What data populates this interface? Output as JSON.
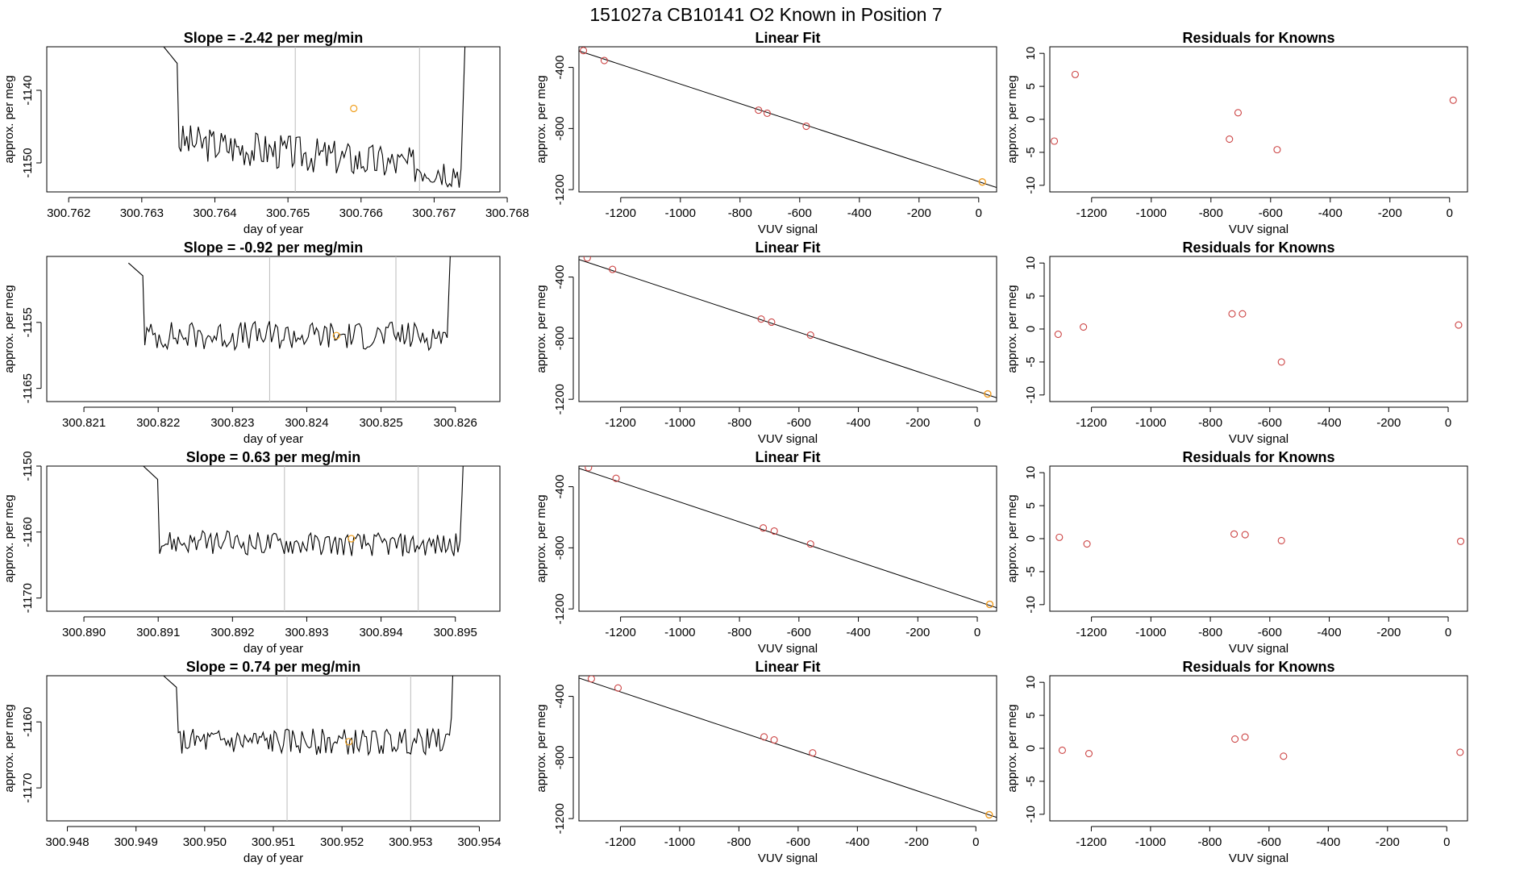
{
  "page": {
    "title": "151027a     CB10141    O2 Known in Position  7",
    "plot_colors": {
      "line": "#000000",
      "marker_known": "#cc4444",
      "marker_highlight": "#f0a020",
      "vline": "#bbbbbb"
    }
  },
  "chart_data": [
    {
      "row": 0,
      "type": "line",
      "title": "Slope =  -2.42  per meg/min",
      "xlabel": "day of year",
      "ylabel": "approx. per meg",
      "xlim": [
        300.7617,
        300.7679
      ],
      "ylim": [
        -1154,
        -1134
      ],
      "xticks": [
        "300.762",
        "300.763",
        "300.764",
        "300.765",
        "300.766",
        "300.767",
        "300.768"
      ],
      "xtick_values": [
        300.762,
        300.763,
        300.764,
        300.765,
        300.766,
        300.767,
        300.768
      ],
      "yticks": [
        "-1140",
        "-1150"
      ],
      "ytick_values": [
        -1140,
        -1150
      ],
      "vlines": [
        300.7651,
        300.7668
      ],
      "highlight": {
        "x": 300.7659,
        "y": -1142.5
      },
      "trace": {
        "x_start": 300.7633,
        "x_end": 300.7675,
        "y_from": -1134,
        "y_to": -1151,
        "noise": 2.5,
        "y_at_end": -1149,
        "drift_mid": -1147
      }
    },
    {
      "row": 0,
      "type": "scatter",
      "title": "Linear Fit",
      "xlabel": "VUV signal",
      "ylabel": "approx. per meg",
      "xlim": [
        -1340,
        60
      ],
      "ylim": [
        -1215,
        -265
      ],
      "xticks": [
        "-1200",
        "-1000",
        "-800",
        "-600",
        "-400",
        "-200",
        "0"
      ],
      "xtick_values": [
        -1200,
        -1000,
        -800,
        -600,
        -400,
        -200,
        0
      ],
      "yticks": [
        "-400",
        "-800",
        "-1200"
      ],
      "ytick_values": [
        -400,
        -800,
        -1200
      ],
      "fit_line": {
        "x": [
          -1340,
          60
        ],
        "y": [
          -292,
          -1186
        ]
      },
      "points": {
        "x": [
          -1325,
          -1255,
          -738,
          -709,
          -578,
          12
        ],
        "y": [
          -290,
          -355,
          -680,
          -700,
          -785,
          -1150
        ]
      },
      "highlight": {
        "x": 12,
        "y": -1150
      }
    },
    {
      "row": 0,
      "type": "scatter",
      "title": "Residuals for Knowns",
      "xlabel": "VUV signal",
      "ylabel": "approx. per meg",
      "xlim": [
        -1340,
        60
      ],
      "ylim": [
        -11,
        11
      ],
      "xticks": [
        "-1200",
        "-1000",
        "-800",
        "-600",
        "-400",
        "-200",
        "0"
      ],
      "xtick_values": [
        -1200,
        -1000,
        -800,
        -600,
        -400,
        -200,
        0
      ],
      "yticks": [
        "-10",
        "-5",
        "0",
        "5",
        "10"
      ],
      "ytick_values": [
        -10,
        -5,
        0,
        5,
        10
      ],
      "points": {
        "x": [
          -1325,
          -1255,
          -738,
          -709,
          -578,
          12
        ],
        "y": [
          -3.3,
          6.8,
          -3.0,
          1.0,
          -4.6,
          2.9
        ]
      }
    },
    {
      "row": 1,
      "type": "line",
      "title": "Slope =  -0.92  per meg/min",
      "xlabel": "day of year",
      "ylabel": "approx. per meg",
      "xlim": [
        300.8205,
        300.8266
      ],
      "ylim": [
        -1167,
        -1145
      ],
      "xticks": [
        "300.821",
        "300.822",
        "300.823",
        "300.824",
        "300.825",
        "300.826"
      ],
      "xtick_values": [
        300.821,
        300.822,
        300.823,
        300.824,
        300.825,
        300.826
      ],
      "yticks": [
        "-1155",
        "-1165"
      ],
      "ytick_values": [
        -1155,
        -1165
      ],
      "vlines": [
        300.8235,
        300.8252
      ],
      "highlight": {
        "x": 300.8244,
        "y": -1157
      },
      "trace": {
        "x_start": 300.8216,
        "x_end": 300.826,
        "y_from": -1146,
        "y_to": -1157,
        "noise": 2.2,
        "y_at_end": -1164,
        "drift_mid": -1157
      }
    },
    {
      "row": 1,
      "type": "scatter",
      "title": "Linear Fit",
      "xlabel": "VUV signal",
      "ylabel": "approx. per meg",
      "xlim": [
        -1340,
        65
      ],
      "ylim": [
        -1215,
        -265
      ],
      "xticks": [
        "-1200",
        "-1000",
        "-800",
        "-600",
        "-400",
        "-200",
        "0"
      ],
      "xtick_values": [
        -1200,
        -1000,
        -800,
        -600,
        -400,
        -200,
        0
      ],
      "yticks": [
        "-400",
        "-800",
        "-1200"
      ],
      "ytick_values": [
        -400,
        -800,
        -1200
      ],
      "fit_line": {
        "x": [
          -1340,
          65
        ],
        "y": [
          -285,
          -1190
        ]
      },
      "points": {
        "x": [
          -1312,
          -1227,
          -727,
          -692,
          -561,
          35
        ],
        "y": [
          -275,
          -350,
          -675,
          -695,
          -780,
          -1165
        ]
      },
      "highlight": {
        "x": 35,
        "y": -1165
      }
    },
    {
      "row": 1,
      "type": "scatter",
      "title": "Residuals for Knowns",
      "xlabel": "VUV signal",
      "ylabel": "approx. per meg",
      "xlim": [
        -1340,
        65
      ],
      "ylim": [
        -11,
        11
      ],
      "xticks": [
        "-1200",
        "-1000",
        "-800",
        "-600",
        "-400",
        "-200",
        "0"
      ],
      "xtick_values": [
        -1200,
        -1000,
        -800,
        -600,
        -400,
        -200,
        0
      ],
      "yticks": [
        "-10",
        "-5",
        "0",
        "5",
        "10"
      ],
      "ytick_values": [
        -10,
        -5,
        0,
        5,
        10
      ],
      "points": {
        "x": [
          -1312,
          -1227,
          -727,
          -692,
          -561,
          35
        ],
        "y": [
          -0.8,
          0.3,
          2.3,
          2.3,
          -5.0,
          0.6
        ]
      }
    },
    {
      "row": 2,
      "type": "line",
      "title": "Slope =  0.63  per meg/min",
      "xlabel": "day of year",
      "ylabel": "approx. per meg",
      "xlim": [
        300.8895,
        300.8956
      ],
      "ylim": [
        -1172,
        -1150
      ],
      "xticks": [
        "300.890",
        "300.891",
        "300.892",
        "300.893",
        "300.894",
        "300.895"
      ],
      "xtick_values": [
        300.89,
        300.891,
        300.892,
        300.893,
        300.894,
        300.895
      ],
      "yticks": [
        "-1150",
        "-1160",
        "-1170"
      ],
      "ytick_values": [
        -1150,
        -1160,
        -1170
      ],
      "vlines": [
        300.8927,
        300.8945
      ],
      "highlight": {
        "x": 300.8936,
        "y": -1161
      },
      "trace": {
        "x_start": 300.8908,
        "x_end": 300.8952,
        "y_from": -1150,
        "y_to": -1162,
        "noise": 1.8,
        "y_at_end": -1161,
        "drift_mid": -1161.5
      }
    },
    {
      "row": 2,
      "type": "scatter",
      "title": "Linear Fit",
      "xlabel": "VUV signal",
      "ylabel": "approx. per meg",
      "xlim": [
        -1340,
        65
      ],
      "ylim": [
        -1215,
        -265
      ],
      "xticks": [
        "-1200",
        "-1000",
        "-800",
        "-600",
        "-400",
        "-200",
        "0"
      ],
      "xtick_values": [
        -1200,
        -1000,
        -800,
        -600,
        -400,
        -200,
        0
      ],
      "yticks": [
        "-400",
        "-800",
        "-1200"
      ],
      "ytick_values": [
        -400,
        -800,
        -1200
      ],
      "fit_line": {
        "x": [
          -1340,
          65
        ],
        "y": [
          -280,
          -1192
        ]
      },
      "points": {
        "x": [
          -1308,
          -1215,
          -720,
          -683,
          -561,
          42
        ],
        "y": [
          -275,
          -345,
          -670,
          -690,
          -775,
          -1170
        ]
      },
      "highlight": {
        "x": 42,
        "y": -1170
      }
    },
    {
      "row": 2,
      "type": "scatter",
      "title": "Residuals for Knowns",
      "xlabel": "VUV signal",
      "ylabel": "approx. per meg",
      "xlim": [
        -1340,
        65
      ],
      "ylim": [
        -11,
        11
      ],
      "xticks": [
        "-1200",
        "-1000",
        "-800",
        "-600",
        "-400",
        "-200",
        "0"
      ],
      "xtick_values": [
        -1200,
        -1000,
        -800,
        -600,
        -400,
        -200,
        0
      ],
      "yticks": [
        "-10",
        "-5",
        "0",
        "5",
        "10"
      ],
      "ytick_values": [
        -10,
        -5,
        0,
        5,
        10
      ],
      "points": {
        "x": [
          -1308,
          -1215,
          -720,
          -683,
          -561,
          42
        ],
        "y": [
          0.2,
          -0.8,
          0.7,
          0.6,
          -0.3,
          -0.4
        ]
      }
    },
    {
      "row": 3,
      "type": "line",
      "title": "Slope =  0.74  per meg/min",
      "xlabel": "day of year",
      "ylabel": "approx. per meg",
      "xlim": [
        300.9477,
        300.9543
      ],
      "ylim": [
        -1175,
        -1153
      ],
      "xticks": [
        "300.948",
        "300.949",
        "300.950",
        "300.951",
        "300.952",
        "300.953",
        "300.954"
      ],
      "xtick_values": [
        300.948,
        300.949,
        300.95,
        300.951,
        300.952,
        300.953,
        300.954
      ],
      "yticks": [
        "-1160",
        "-1170"
      ],
      "ytick_values": [
        -1160,
        -1170
      ],
      "vlines": [
        300.9512,
        300.953
      ],
      "highlight": {
        "x": 300.9521,
        "y": -1163
      },
      "trace": {
        "x_start": 300.9494,
        "x_end": 300.9537,
        "y_from": -1153,
        "y_to": -1163,
        "noise": 2.0,
        "y_at_end": -1166,
        "drift_mid": -1163
      }
    },
    {
      "row": 3,
      "type": "scatter",
      "title": "Linear Fit",
      "xlabel": "VUV signal",
      "ylabel": "approx. per meg",
      "xlim": [
        -1340,
        70
      ],
      "ylim": [
        -1215,
        -265
      ],
      "xticks": [
        "-1200",
        "-1000",
        "-800",
        "-600",
        "-400",
        "-200",
        "0"
      ],
      "xtick_values": [
        -1200,
        -1000,
        -800,
        -600,
        -400,
        -200,
        0
      ],
      "yticks": [
        "-400",
        "-800",
        "-1200"
      ],
      "ytick_values": [
        -400,
        -800,
        -1200
      ],
      "fit_line": {
        "x": [
          -1340,
          70
        ],
        "y": [
          -280,
          -1192
        ]
      },
      "points": {
        "x": [
          -1298,
          -1208,
          -715,
          -681,
          -551,
          45
        ],
        "y": [
          -285,
          -345,
          -665,
          -685,
          -770,
          -1175
        ]
      },
      "highlight": {
        "x": 45,
        "y": -1175
      }
    },
    {
      "row": 3,
      "type": "scatter",
      "title": "Residuals for Knowns",
      "xlabel": "VUV signal",
      "ylabel": "approx. per meg",
      "xlim": [
        -1340,
        70
      ],
      "ylim": [
        -11,
        11
      ],
      "xticks": [
        "-1200",
        "-1000",
        "-800",
        "-600",
        "-400",
        "-200",
        "0"
      ],
      "xtick_values": [
        -1200,
        -1000,
        -800,
        -600,
        -400,
        -200,
        0
      ],
      "yticks": [
        "-10",
        "-5",
        "0",
        "5",
        "10"
      ],
      "ytick_values": [
        -10,
        -5,
        0,
        5,
        10
      ],
      "points": {
        "x": [
          -1298,
          -1208,
          -715,
          -681,
          -551,
          45
        ],
        "y": [
          -0.3,
          -0.8,
          1.4,
          1.7,
          -1.2,
          -0.6
        ]
      }
    }
  ]
}
